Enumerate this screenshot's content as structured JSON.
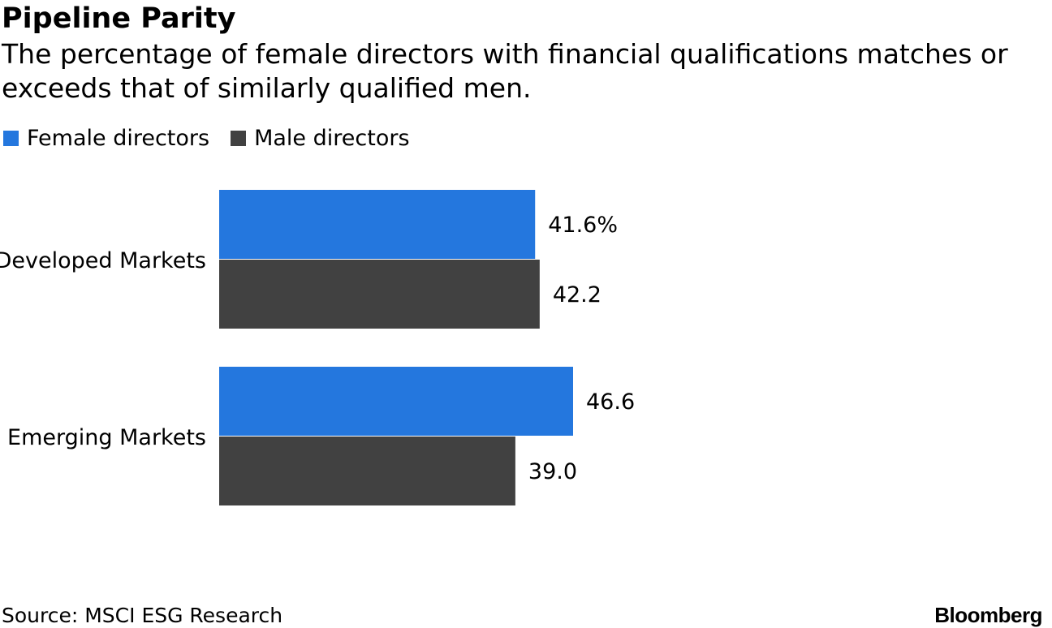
{
  "header": {
    "title": "Pipeline Parity",
    "subtitle": "The percentage of female directors with financial qualifications matches or exceeds that of similarly qualified men."
  },
  "legend": [
    {
      "label": "Female directors",
      "color": "#2477de"
    },
    {
      "label": "Male directors",
      "color": "#414141"
    }
  ],
  "chart_data": {
    "type": "bar",
    "orientation": "horizontal",
    "title": "Pipeline Parity",
    "categories": [
      "Developed Markets",
      "Emerging Markets"
    ],
    "series": [
      {
        "name": "Female directors",
        "color": "#2477de",
        "values": [
          41.6,
          46.6
        ],
        "labels": [
          "41.6%",
          "46.6"
        ]
      },
      {
        "name": "Male directors",
        "color": "#414141",
        "values": [
          42.2,
          39.0
        ],
        "labels": [
          "42.2",
          "39.0"
        ]
      }
    ],
    "xlim": [
      0,
      46.6
    ],
    "grid": false,
    "legend_position": "top-left"
  },
  "footer": {
    "source": "Source: MSCI ESG Research",
    "brand": "Bloomberg"
  }
}
